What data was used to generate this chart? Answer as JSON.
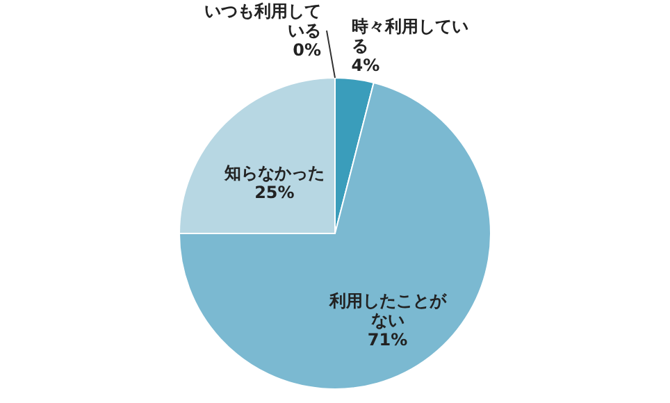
{
  "chart_data": {
    "type": "pie",
    "categories": [
      "いつも利用している",
      "時々利用している",
      "利用したことがない",
      "知らなかった"
    ],
    "values": [
      0,
      4,
      71,
      25
    ],
    "value_labels": [
      "0%",
      "4%",
      "71%",
      "25%"
    ],
    "colors": [
      "#1f5f7a",
      "#3a9dbb",
      "#7bb9d1",
      "#b7d7e3"
    ],
    "legend": false
  }
}
